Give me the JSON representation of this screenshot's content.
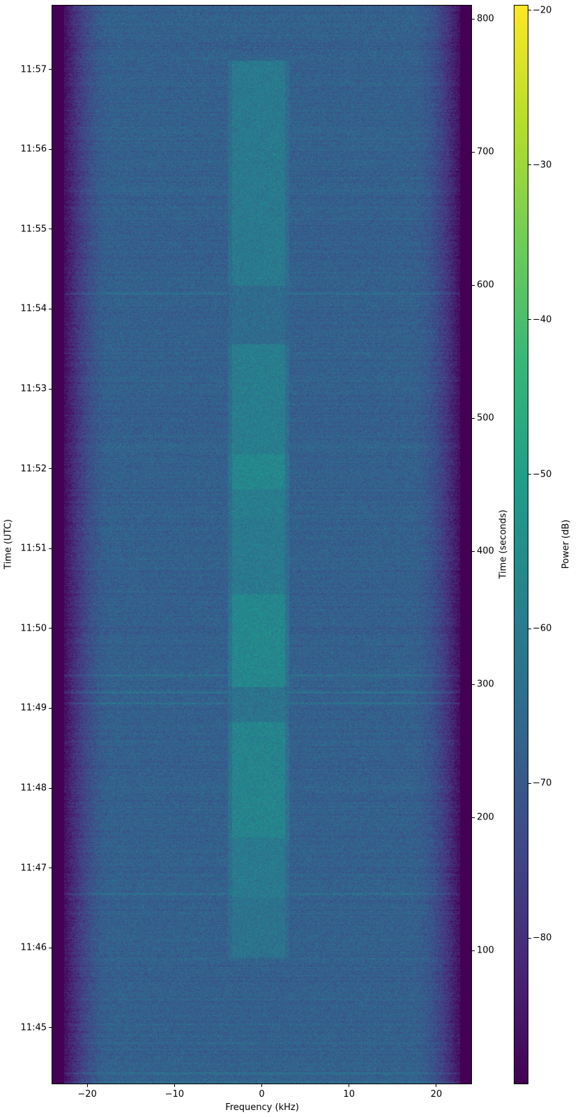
{
  "chart_data": {
    "type": "heatmap",
    "colormap": "viridis",
    "xlabel": "Frequency (kHz)",
    "ylabel_left": "Time (UTC)",
    "ylabel_right": "Time (seconds)",
    "colorbar_label": "Power (dB)",
    "xlim": [
      -24,
      24
    ],
    "ylim": [
      0,
      810
    ],
    "clim": [
      -89.4,
      -19.7
    ],
    "xticks": [
      -20,
      -10,
      0,
      10,
      20
    ],
    "yticks_seconds": [
      100,
      200,
      300,
      400,
      500,
      600,
      700,
      800
    ],
    "yticks_utc": [
      {
        "label": "11:45",
        "seconds": 42
      },
      {
        "label": "11:46",
        "seconds": 102
      },
      {
        "label": "11:47",
        "seconds": 162
      },
      {
        "label": "11:48",
        "seconds": 222
      },
      {
        "label": "11:49",
        "seconds": 282
      },
      {
        "label": "11:50",
        "seconds": 342
      },
      {
        "label": "11:51",
        "seconds": 402
      },
      {
        "label": "11:52",
        "seconds": 462
      },
      {
        "label": "11:53",
        "seconds": 522
      },
      {
        "label": "11:54",
        "seconds": 582
      },
      {
        "label": "11:55",
        "seconds": 642
      },
      {
        "label": "11:56",
        "seconds": 702
      },
      {
        "label": "11:57",
        "seconds": 762
      }
    ],
    "colorbar_ticks": [
      -20,
      -30,
      -40,
      -50,
      -60,
      -70,
      -80
    ],
    "grid": false,
    "legend": "none",
    "background_level_db": -68,
    "passband_edge_khz": [
      -22.5,
      22.5
    ],
    "signal_band_khz": [
      -3.4,
      2.6
    ],
    "signal_segments": [
      {
        "t_start": 95,
        "t_end": 140,
        "level_db": -63
      },
      {
        "t_start": 140,
        "t_end": 185,
        "level_db": -61
      },
      {
        "t_start": 185,
        "t_end": 272,
        "level_db": -58
      },
      {
        "t_start": 272,
        "t_end": 298,
        "level_db": -63
      },
      {
        "t_start": 298,
        "t_end": 368,
        "level_db": -57
      },
      {
        "t_start": 368,
        "t_end": 425,
        "level_db": -61
      },
      {
        "t_start": 425,
        "t_end": 447,
        "level_db": -60
      },
      {
        "t_start": 447,
        "t_end": 473,
        "level_db": -57
      },
      {
        "t_start": 473,
        "t_end": 556,
        "level_db": -60
      },
      {
        "t_start": 556,
        "t_end": 600,
        "level_db": -65
      },
      {
        "t_start": 600,
        "t_end": 769,
        "level_db": -61
      }
    ],
    "horizontal_lines_seconds": [
      1,
      8,
      143,
      286,
      294,
      307,
      594
    ]
  }
}
